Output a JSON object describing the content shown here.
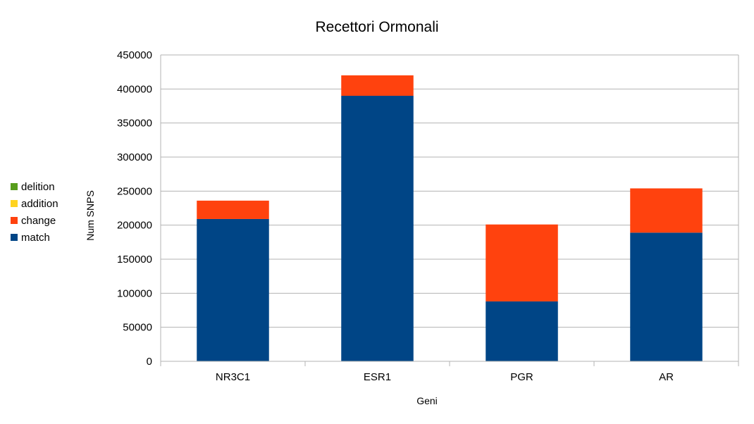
{
  "chart_data": {
    "type": "bar",
    "stacked": true,
    "title": "Recettori Ormonali",
    "xlabel": "Geni",
    "ylabel": "Num SNPS",
    "categories": [
      "NR3C1",
      "ESR1",
      "PGR",
      "AR"
    ],
    "ylim": [
      0,
      450000
    ],
    "yticks": [
      "0",
      "50000",
      "100000",
      "150000",
      "200000",
      "250000",
      "300000",
      "350000",
      "400000",
      "450000"
    ],
    "grid": true,
    "legend_position": "left",
    "series": [
      {
        "name": "match",
        "color": "#004586",
        "values": [
          209000,
          390000,
          88000,
          189000
        ]
      },
      {
        "name": "change",
        "color": "#ff420e",
        "values": [
          27000,
          30000,
          113000,
          65000
        ]
      },
      {
        "name": "addition",
        "color": "#ffd320",
        "values": [
          0,
          0,
          0,
          0
        ]
      },
      {
        "name": "delition",
        "color": "#579d1c",
        "values": [
          0,
          0,
          0,
          0
        ]
      }
    ],
    "legend_order": [
      "delition",
      "addition",
      "change",
      "match"
    ]
  }
}
